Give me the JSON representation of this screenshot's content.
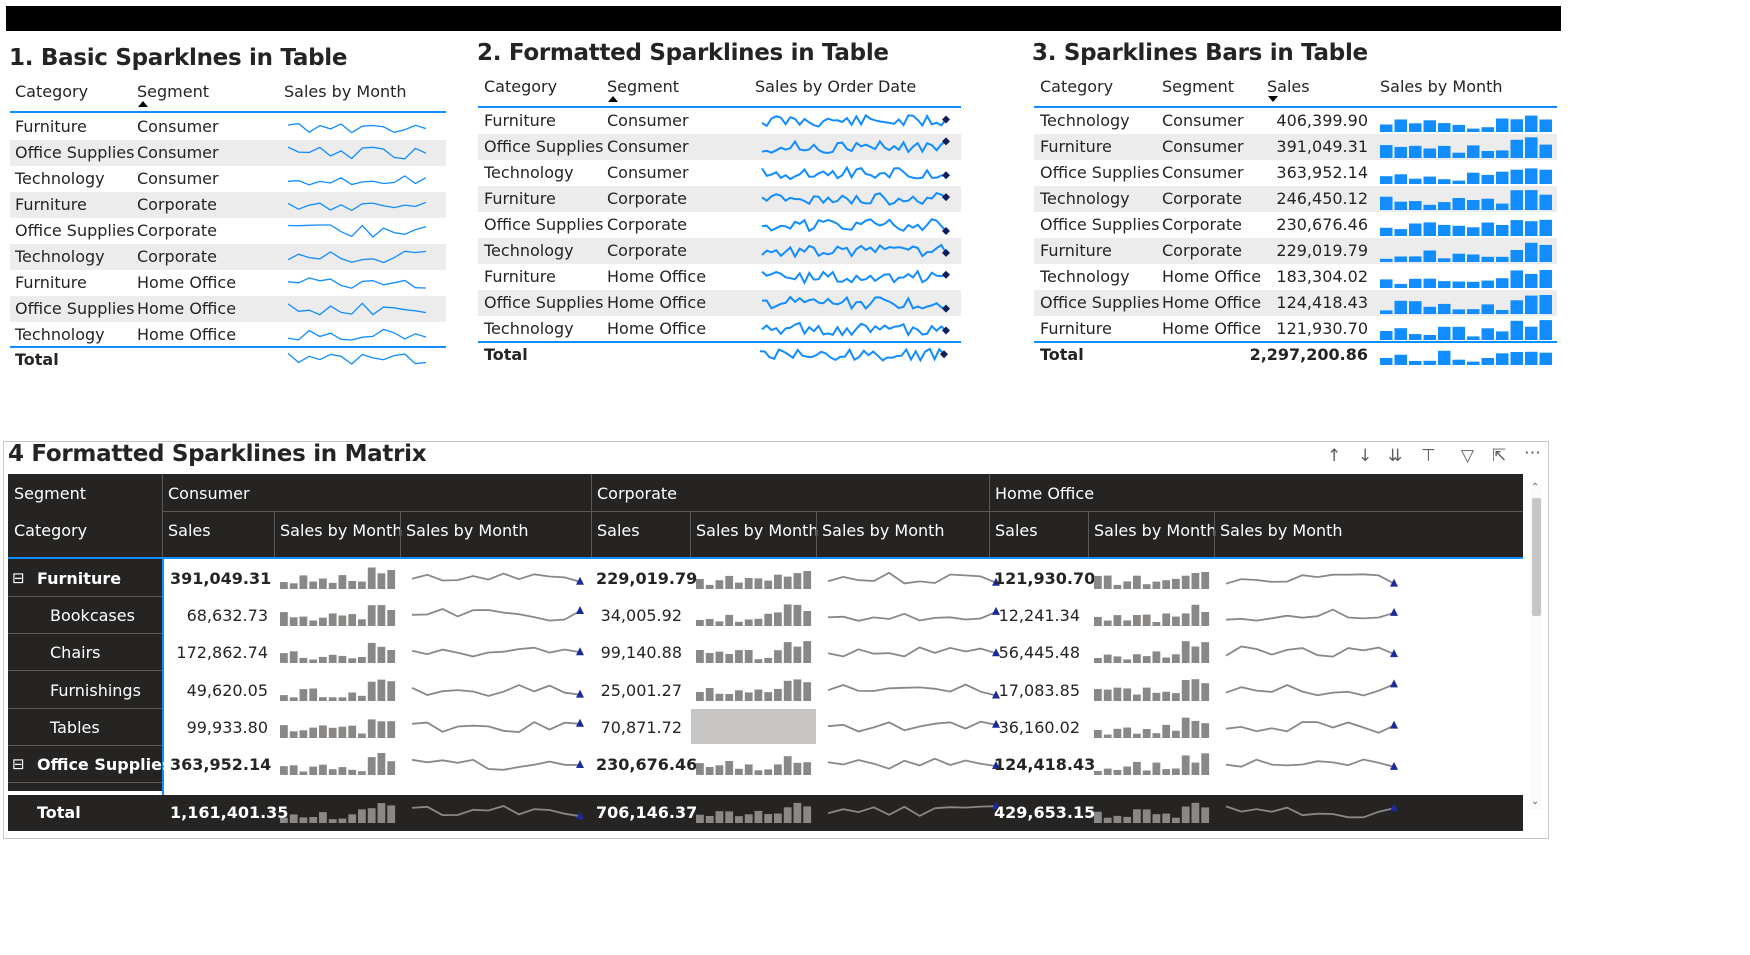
{
  "visual1": {
    "title": "1. Basic Sparklnes in Table",
    "headers": [
      "Category",
      "Segment",
      "Sales by Month"
    ],
    "rows": [
      {
        "category": "Furniture",
        "segment": "Consumer"
      },
      {
        "category": "Office Supplies",
        "segment": "Consumer"
      },
      {
        "category": "Technology",
        "segment": "Consumer"
      },
      {
        "category": "Furniture",
        "segment": "Corporate"
      },
      {
        "category": "Office Supplies",
        "segment": "Corporate"
      },
      {
        "category": "Technology",
        "segment": "Corporate"
      },
      {
        "category": "Furniture",
        "segment": "Home Office"
      },
      {
        "category": "Office Supplies",
        "segment": "Home Office"
      },
      {
        "category": "Technology",
        "segment": "Home Office"
      }
    ],
    "total_label": "Total",
    "line_color": "#118DFF"
  },
  "visual2": {
    "title": "2. Formatted Sparklines in Table",
    "headers": [
      "Category",
      "Segment",
      "Sales by Order Date"
    ],
    "rows": [
      {
        "category": "Furniture",
        "segment": "Consumer"
      },
      {
        "category": "Office Supplies",
        "segment": "Consumer"
      },
      {
        "category": "Technology",
        "segment": "Consumer"
      },
      {
        "category": "Furniture",
        "segment": "Corporate"
      },
      {
        "category": "Office Supplies",
        "segment": "Corporate"
      },
      {
        "category": "Technology",
        "segment": "Corporate"
      },
      {
        "category": "Furniture",
        "segment": "Home Office"
      },
      {
        "category": "Office Supplies",
        "segment": "Home Office"
      },
      {
        "category": "Technology",
        "segment": "Home Office"
      }
    ],
    "total_label": "Total",
    "line_color": "#118DFF",
    "marker_color": "#0f1e5a"
  },
  "visual3": {
    "title": "3. Sparklines Bars in Table",
    "headers": [
      "Category",
      "Segment",
      "Sales",
      "Sales by Month"
    ],
    "rows": [
      {
        "category": "Technology",
        "segment": "Consumer",
        "sales": "406,399.90"
      },
      {
        "category": "Furniture",
        "segment": "Consumer",
        "sales": "391,049.31"
      },
      {
        "category": "Office Supplies",
        "segment": "Consumer",
        "sales": "363,952.14"
      },
      {
        "category": "Technology",
        "segment": "Corporate",
        "sales": "246,450.12"
      },
      {
        "category": "Office Supplies",
        "segment": "Corporate",
        "sales": "230,676.46"
      },
      {
        "category": "Furniture",
        "segment": "Corporate",
        "sales": "229,019.79"
      },
      {
        "category": "Technology",
        "segment": "Home Office",
        "sales": "183,304.02"
      },
      {
        "category": "Office Supplies",
        "segment": "Home Office",
        "sales": "124,418.43"
      },
      {
        "category": "Furniture",
        "segment": "Home Office",
        "sales": "121,930.70"
      }
    ],
    "total_label": "Total",
    "total_sales": "2,297,200.86",
    "bar_color": "#118DFF"
  },
  "visual4": {
    "title": "4 Formatted Sparklines in Matrix",
    "row_header_top": "Segment",
    "row_header_bottom": "Category",
    "segments": [
      "Consumer",
      "Corporate",
      "Home Office"
    ],
    "column_labels": [
      "Sales",
      "Sales by Month",
      "Sales by Month"
    ],
    "rows": [
      {
        "label": "Furniture",
        "level": 0,
        "expand": "⊟",
        "bold": true,
        "values": [
          "391,049.31",
          "229,019.79",
          "121,930.70"
        ]
      },
      {
        "label": "Bookcases",
        "level": 1,
        "expand": "",
        "bold": false,
        "values": [
          "68,632.73",
          "34,005.92",
          "12,241.34"
        ]
      },
      {
        "label": "Chairs",
        "level": 1,
        "expand": "",
        "bold": false,
        "values": [
          "172,862.74",
          "99,140.88",
          "56,445.48"
        ]
      },
      {
        "label": "Furnishings",
        "level": 1,
        "expand": "",
        "bold": false,
        "values": [
          "49,620.05",
          "25,001.27",
          "17,083.85"
        ]
      },
      {
        "label": "Tables",
        "level": 1,
        "expand": "",
        "bold": false,
        "values": [
          "99,933.80",
          "70,871.72",
          "36,160.02"
        ]
      },
      {
        "label": "Office Supplies",
        "level": 0,
        "expand": "⊟",
        "bold": true,
        "values": [
          "363,952.14",
          "230,676.46",
          "124,418.43"
        ]
      }
    ],
    "total_label": "Total",
    "total_values": [
      "1,161,401.35",
      "706,146.37",
      "429,653.15"
    ],
    "toolbar_icons": [
      "arrow-up-icon",
      "arrow-down-icon",
      "double-arrow-down-icon",
      "expand-hierarchy-icon",
      "filter-icon",
      "focus-mode-icon",
      "more-options-icon"
    ],
    "bar_color": "#8a8886",
    "line_color": "#8a8886",
    "marker_color": "#1a2a9a",
    "header_bg": "#252423"
  }
}
